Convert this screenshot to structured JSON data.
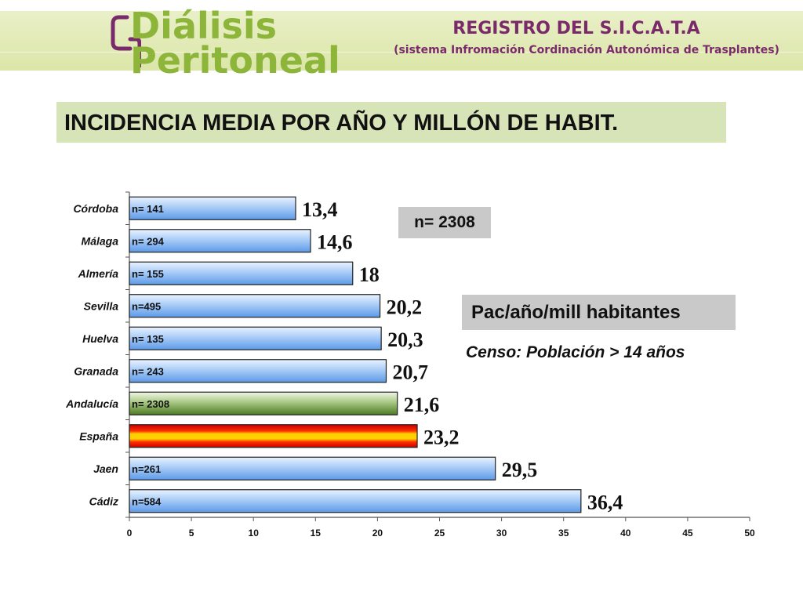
{
  "header": {
    "logo_line1": "Diálisis",
    "logo_line2": "Peritoneal",
    "registro_title": "REGISTRO DEL S.I.C.A.T.A",
    "registro_subtitle": "(sistema Infromación Cordinación Autonómica de Trasplantes)"
  },
  "main_title": "INCIDENCIA MEDIA POR AÑO Y MILLÓN DE HABIT.",
  "annotations": {
    "n_total": "n= 2308",
    "units_label": "Pac/año/mill habitantes",
    "censo": "Censo: Población  > 14 años"
  },
  "colors": {
    "title_bg": "#d6e4b8",
    "header_band": "#dbe6a8",
    "logo_green": "#8cb53a",
    "logo_purple": "#7a2a6a",
    "bar_blue": "#6fa8f0",
    "bar_green": "#5f8f2f",
    "bar_spain_red": "#e01010",
    "bar_spain_yellow": "#f4d000"
  },
  "chart_data": {
    "type": "bar",
    "orientation": "horizontal",
    "categories": [
      "Córdoba",
      "Málaga",
      "Almería",
      "Sevilla",
      "Huelva",
      "Granada",
      "Andalucía",
      "España",
      "Jaen",
      "Cádiz"
    ],
    "values": [
      13.4,
      14.6,
      18,
      20.2,
      20.3,
      20.7,
      21.6,
      23.2,
      29.5,
      36.4
    ],
    "value_labels": [
      "13,4",
      "14,6",
      "18",
      "20,2",
      "20,3",
      "20,7",
      "21,6",
      "23,2",
      "29,5",
      "36,4"
    ],
    "bar_labels": [
      "n= 141",
      "n= 294",
      "n= 155",
      "n=495",
      "n= 135",
      "n= 243",
      "n= 2308",
      "",
      "n=261",
      "n=584"
    ],
    "bar_styles": [
      "blue",
      "blue",
      "blue",
      "blue",
      "blue",
      "blue",
      "green",
      "spain",
      "blue",
      "blue"
    ],
    "xlim": [
      0,
      50
    ],
    "xticks": [
      0,
      5,
      10,
      15,
      20,
      25,
      30,
      35,
      40,
      45,
      50
    ],
    "grid": false
  }
}
